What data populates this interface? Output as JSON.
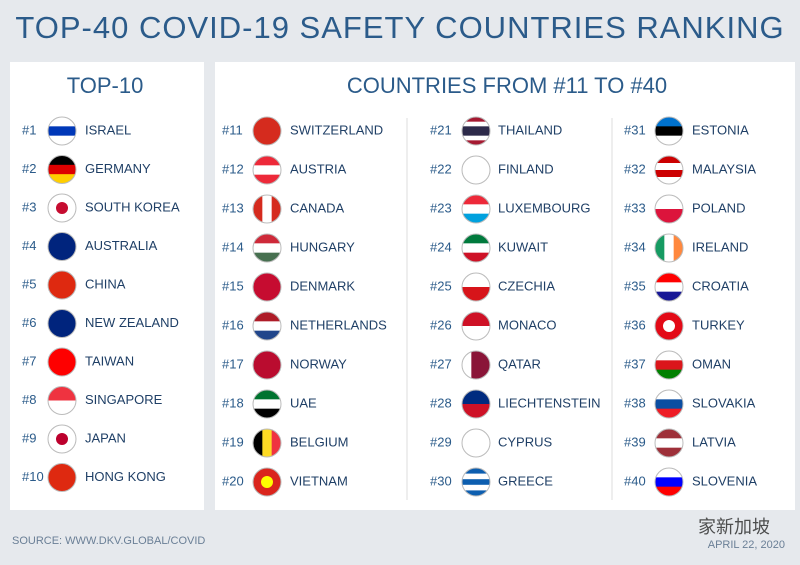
{
  "title": "TOP-40 COVID-19 SAFETY COUNTRIES RANKING",
  "top10": {
    "heading": "TOP-10",
    "items": [
      {
        "rank": "#1",
        "name": "ISRAEL"
      },
      {
        "rank": "#2",
        "name": "GERMANY"
      },
      {
        "rank": "#3",
        "name": "SOUTH KOREA"
      },
      {
        "rank": "#4",
        "name": "AUSTRALIA"
      },
      {
        "rank": "#5",
        "name": "CHINA"
      },
      {
        "rank": "#6",
        "name": "NEW ZEALAND"
      },
      {
        "rank": "#7",
        "name": "TAIWAN"
      },
      {
        "rank": "#8",
        "name": "SINGAPORE"
      },
      {
        "rank": "#9",
        "name": "JAPAN"
      },
      {
        "rank": "#10",
        "name": "HONG KONG"
      }
    ]
  },
  "others": {
    "heading": "COUNTRIES FROM #11 TO #40",
    "items": [
      {
        "rank": "#11",
        "name": "SWITZERLAND"
      },
      {
        "rank": "#12",
        "name": "AUSTRIA"
      },
      {
        "rank": "#13",
        "name": "CANADA"
      },
      {
        "rank": "#14",
        "name": "HUNGARY"
      },
      {
        "rank": "#15",
        "name": "DENMARK"
      },
      {
        "rank": "#16",
        "name": "NETHERLANDS"
      },
      {
        "rank": "#17",
        "name": "NORWAY"
      },
      {
        "rank": "#18",
        "name": "UAE"
      },
      {
        "rank": "#19",
        "name": "BELGIUM"
      },
      {
        "rank": "#20",
        "name": "VIETNAM"
      },
      {
        "rank": "#21",
        "name": "THAILAND"
      },
      {
        "rank": "#22",
        "name": "FINLAND"
      },
      {
        "rank": "#23",
        "name": "LUXEMBOURG"
      },
      {
        "rank": "#24",
        "name": "KUWAIT"
      },
      {
        "rank": "#25",
        "name": "CZECHIA"
      },
      {
        "rank": "#26",
        "name": "MONACO"
      },
      {
        "rank": "#27",
        "name": "QATAR"
      },
      {
        "rank": "#28",
        "name": "LIECHTENSTEIN"
      },
      {
        "rank": "#29",
        "name": "CYPRUS"
      },
      {
        "rank": "#30",
        "name": "GREECE"
      },
      {
        "rank": "#31",
        "name": "ESTONIA"
      },
      {
        "rank": "#32",
        "name": "MALAYSIA"
      },
      {
        "rank": "#33",
        "name": "POLAND"
      },
      {
        "rank": "#34",
        "name": "IRELAND"
      },
      {
        "rank": "#35",
        "name": "CROATIA"
      },
      {
        "rank": "#36",
        "name": "TURKEY"
      },
      {
        "rank": "#37",
        "name": "OMAN"
      },
      {
        "rank": "#38",
        "name": "SLOVAKIA"
      },
      {
        "rank": "#39",
        "name": "LATVIA"
      },
      {
        "rank": "#40",
        "name": "SLOVENIA"
      }
    ]
  },
  "source": "SOURCE: WWW.DKV.GLOBAL/COVID",
  "date": "APRIL 22, 2020",
  "watermark": "家新加坡"
}
